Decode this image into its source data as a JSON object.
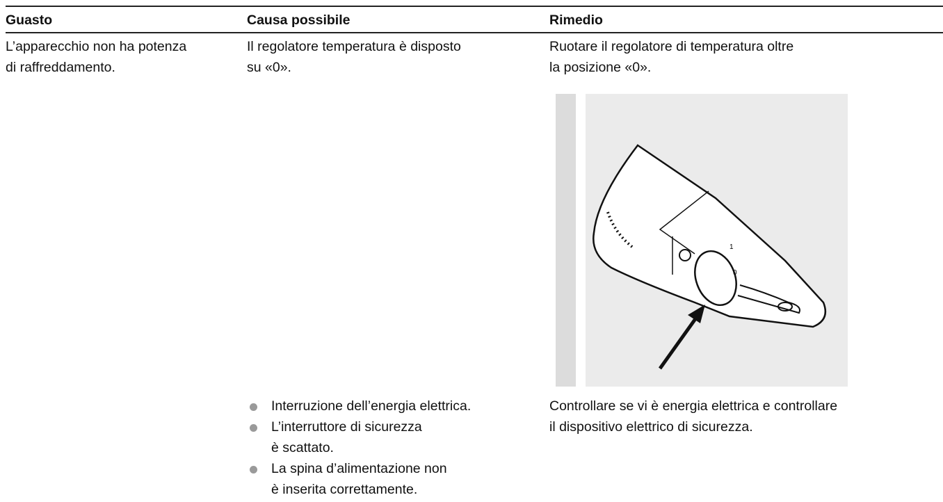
{
  "table": {
    "header": [
      "Guasto",
      "Causa possibile",
      "Rimedio"
    ],
    "rows": [
      {
        "fault": [
          "L’apparecchio non ha potenza",
          "di raffreddamento."
        ],
        "cause": [
          "Il regolatore temperatura è disposto",
          "su «0»."
        ],
        "remedy": [
          "Ruotare il regolatore di temperatura oltre",
          "la posizione «0»."
        ]
      },
      {
        "cause_items": [
          [
            "Interruzione dell’energia elettrica."
          ],
          [
            "L’interruttore di sicurezza",
            "è scattato."
          ],
          [
            "La spina d’alimentazione non",
            "è inserita correttamente."
          ]
        ],
        "remedy": [
          "Controllare se vi è energia elettrica e controllare",
          "il dispositivo elettrico di sicurezza."
        ]
      }
    ]
  },
  "illustration": {
    "dial_labels": [
      "1",
      "0"
    ]
  }
}
